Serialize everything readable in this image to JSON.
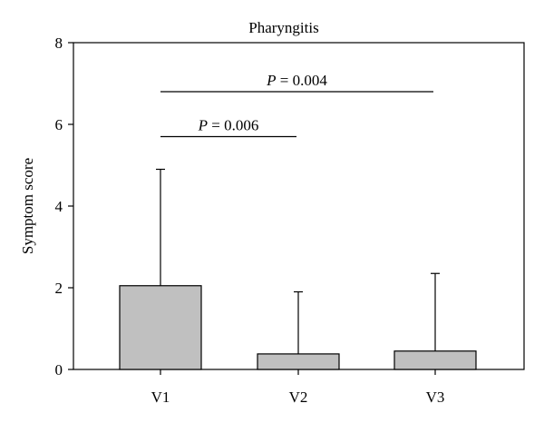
{
  "chart_data": {
    "type": "bar",
    "title": "Pharyngitis",
    "xlabel": "",
    "ylabel": "Symptom score",
    "ylim": [
      0,
      8
    ],
    "yticks": [
      "0",
      "2",
      "4",
      "6",
      "8"
    ],
    "categories": [
      "V1",
      "V2",
      "V3"
    ],
    "values": [
      2.05,
      0.38,
      0.45
    ],
    "error_upper": [
      4.9,
      1.9,
      2.35
    ],
    "bar_color": "#c0c0c0",
    "grid": false,
    "annotations": [
      {
        "label_italic": "P",
        "label_rest": " = 0.006",
        "from": "V1",
        "to": "V2",
        "y": 5.7
      },
      {
        "label_italic": "P",
        "label_rest": " = 0.004",
        "from": "V1",
        "to": "V3",
        "y": 6.8
      }
    ]
  }
}
